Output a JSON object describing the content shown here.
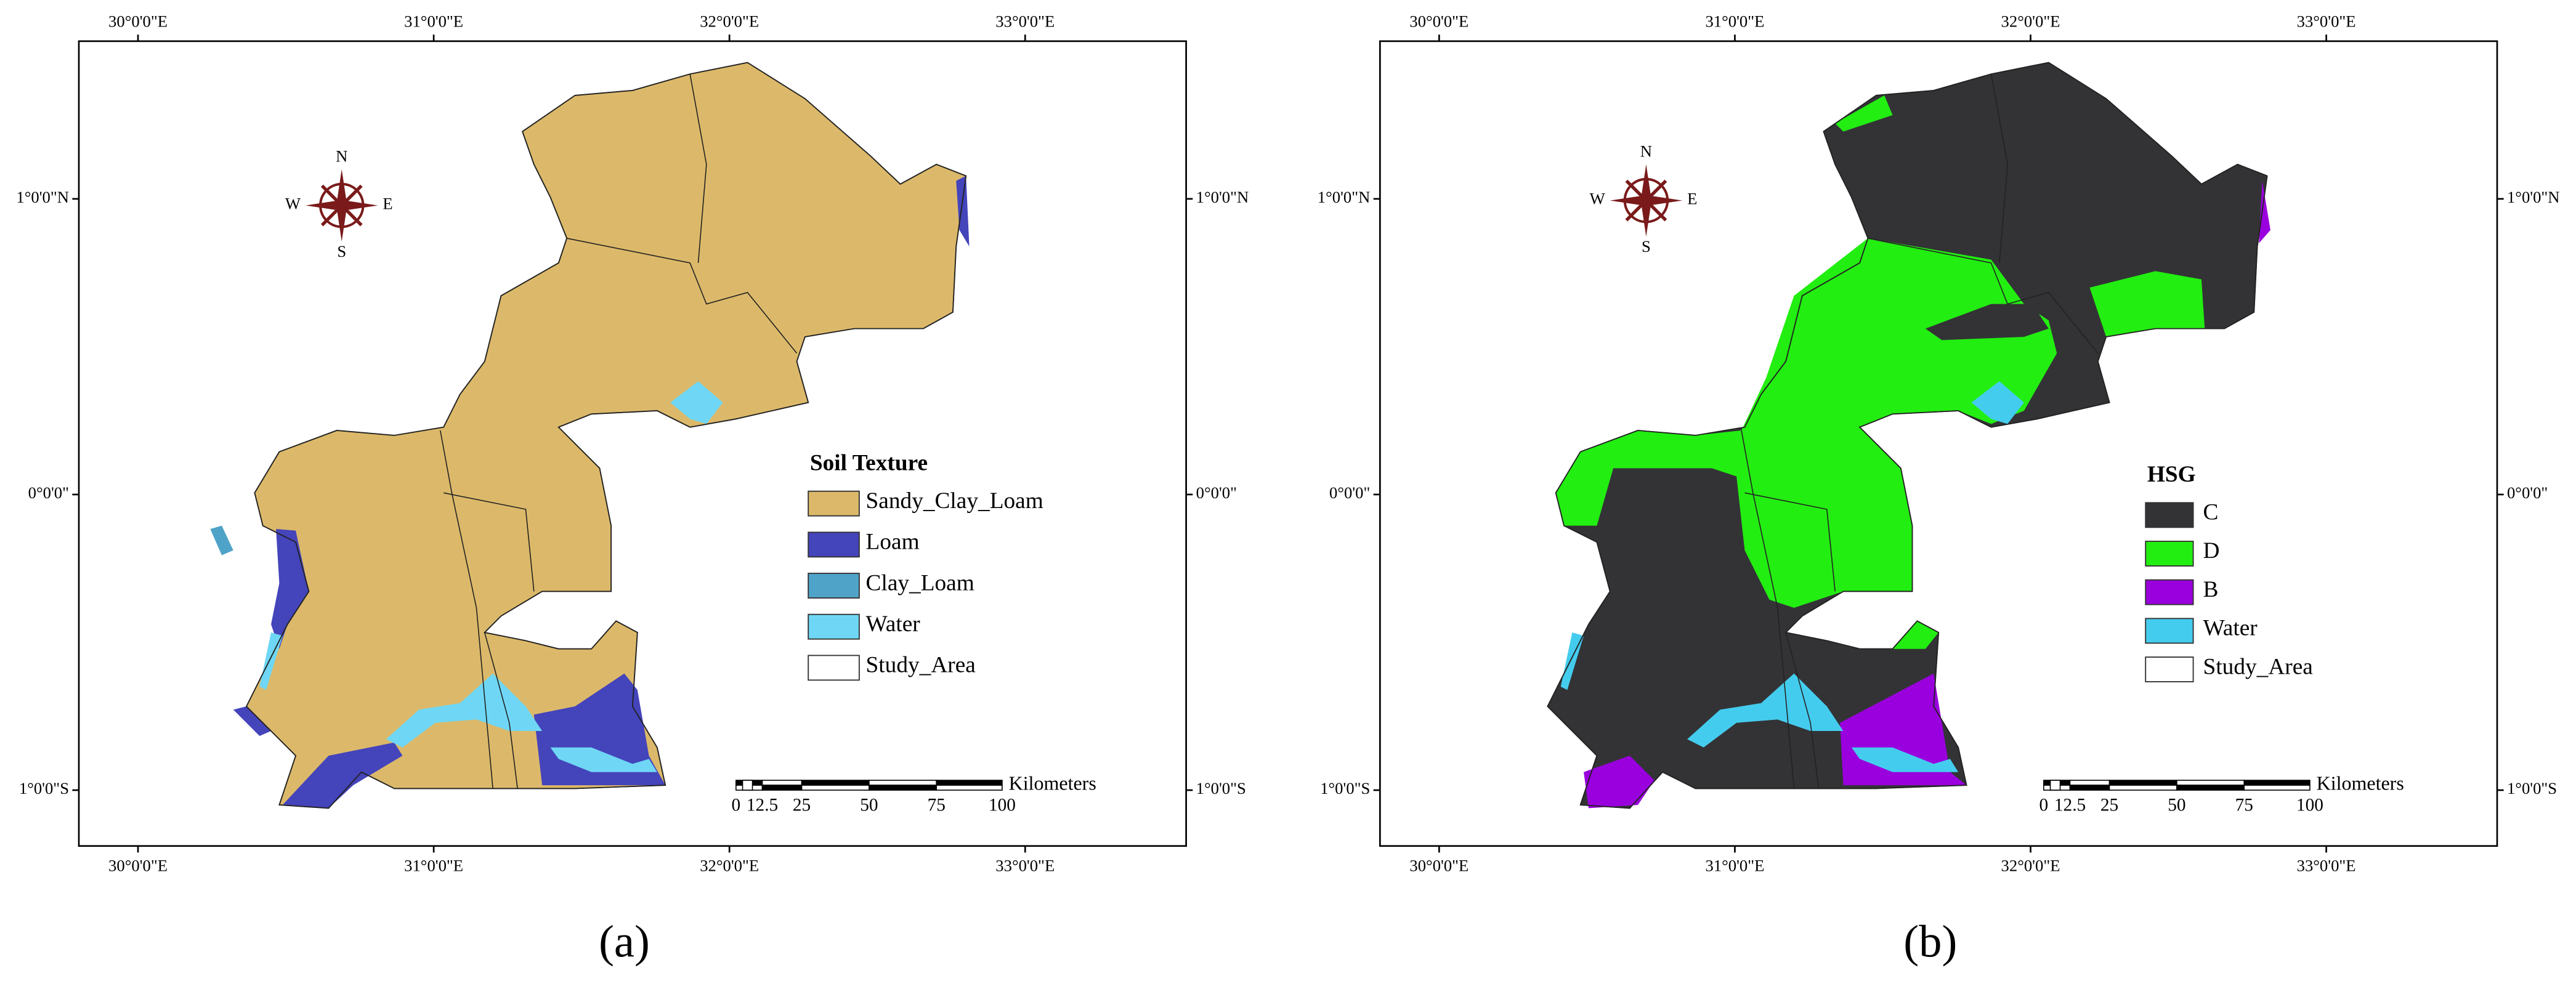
{
  "panels": [
    {
      "caption": "(a)",
      "lon_labels": [
        "30°0'0\"E",
        "31°0'0\"E",
        "32°0'0\"E",
        "33°0'0\"E"
      ],
      "lat_labels": [
        "1°0'0\"N",
        "0°0'0\"",
        "1°0'0\"S"
      ],
      "compass": [
        "N",
        "S",
        "E",
        "W"
      ],
      "legend": {
        "title": "Soil Texture",
        "items": [
          {
            "label": "Sandy_Clay_Loam",
            "color": "#dcb96a"
          },
          {
            "label": "Loam",
            "color": "#4444bb"
          },
          {
            "label": "Clay_Loam",
            "color": "#4fa3c9"
          },
          {
            "label": "Water",
            "color": "#6fd7f5"
          },
          {
            "label": "Study_Area",
            "color": "#ffffff"
          }
        ]
      },
      "scale_bar": {
        "ticks": [
          "0",
          "12.5",
          "25",
          "50",
          "75",
          "100"
        ],
        "unit": "Kilometers"
      }
    },
    {
      "caption": "(b)",
      "lon_labels": [
        "30°0'0\"E",
        "31°0'0\"E",
        "32°0'0\"E",
        "33°0'0\"E"
      ],
      "lat_labels": [
        "1°0'0\"N",
        "0°0'0\"",
        "1°0'0\"S"
      ],
      "compass": [
        "N",
        "S",
        "E",
        "W"
      ],
      "legend": {
        "title": "HSG",
        "items": [
          {
            "label": "C",
            "color": "#333336"
          },
          {
            "label": "D",
            "color": "#22ee11"
          },
          {
            "label": "B",
            "color": "#9900dd"
          },
          {
            "label": "Water",
            "color": "#44ccee"
          },
          {
            "label": "Study_Area",
            "color": "#ffffff"
          }
        ]
      },
      "scale_bar": {
        "ticks": [
          "0",
          "12.5",
          "25",
          "50",
          "75",
          "100"
        ],
        "unit": "Kilometers"
      }
    }
  ]
}
